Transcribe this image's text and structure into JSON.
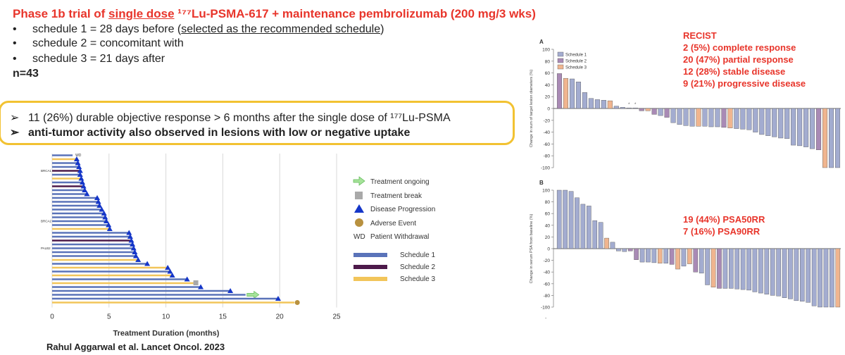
{
  "title": {
    "prefix": "Phase 1b trial of ",
    "underlined": "single dose",
    "suffix": " ¹⁷⁷Lu-PSMA-617 + maintenance pembrolizumab (200 mg/3 wks)"
  },
  "bullets": {
    "marker": "•",
    "items": [
      {
        "pre": "schedule 1 = 28 days before (",
        "underlined": "selected as the recommended schedule",
        "post": ")"
      },
      {
        "pre": "schedule 2 = concomitant with",
        "underlined": "",
        "post": ""
      },
      {
        "pre": "schedule 3 = 21 days after",
        "underlined": "",
        "post": ""
      }
    ],
    "n": "n=43"
  },
  "highlights": {
    "marker": "➢",
    "line1": "11 (26%) durable objective response > 6 months after the single dose of ¹⁷⁷Lu-PSMA",
    "line2": "anti-tumor activity also observed in lesions with low or negative uptake"
  },
  "citation": "Rahul Aggarwal et al. Lancet Oncol. 2023",
  "recist": {
    "heading": "RECIST",
    "lines": [
      "2 (5%) complete response",
      "20 (47%) partial response",
      "12 (28%) stable disease",
      "9 (21%) progressive disease"
    ]
  },
  "psa": {
    "lines": [
      "19 (44%) PSA50RR",
      "7 (16%) PSA90RR"
    ]
  },
  "colors": {
    "title_red": "#e8352b",
    "schedule1": "#5a73b9",
    "schedule2": "#4d1a4a",
    "schedule3": "#f2c55a",
    "highlight_border": "#f2c232",
    "wf_schedule1": "#a3acd0",
    "wf_schedule2": "#a98ab5",
    "wf_schedule3": "#f0b58f",
    "ongoing_arrow": "#a6e39a",
    "break_square": "#a9a9a9",
    "progression": "#1536c8",
    "adverse": "#b8913f"
  },
  "chart_data": [
    {
      "type": "swimmer",
      "xlabel": "Treatment Duration (months)",
      "xlim": [
        0,
        25
      ],
      "xticks": [
        "0",
        "5",
        "10",
        "15",
        "20",
        "25"
      ],
      "legend": {
        "ongoing": "Treatment ongoing",
        "break": "Treatment break",
        "progression": "Disease Progression",
        "adverse": "Adverse Event",
        "wd_abbr": "WD",
        "wd": "Patient Withdrawal",
        "s1": "Schedule 1",
        "s2": "Schedule 2",
        "s3": "Schedule 3"
      },
      "row_labels": {
        "0": "WD",
        "4": "BRCA1",
        "17": "BRCA2",
        "24": "PALB2"
      },
      "patients": [
        {
          "d": 1.8,
          "s": 1,
          "e": "none"
        },
        {
          "d": 2.1,
          "s": 3,
          "e": "prog"
        },
        {
          "d": 2.2,
          "s": 1,
          "e": "prog"
        },
        {
          "d": 2.3,
          "s": 1,
          "e": "prog"
        },
        {
          "d": 2.4,
          "s": 2,
          "e": "prog"
        },
        {
          "d": 2.4,
          "s": 1,
          "e": "prog"
        },
        {
          "d": 2.5,
          "s": 3,
          "e": "prog"
        },
        {
          "d": 2.6,
          "s": 1,
          "e": "prog"
        },
        {
          "d": 2.7,
          "s": 2,
          "e": "prog"
        },
        {
          "d": 2.8,
          "s": 1,
          "e": "prog"
        },
        {
          "d": 3.0,
          "s": 1,
          "e": "prog"
        },
        {
          "d": 3.9,
          "s": 1,
          "e": "prog"
        },
        {
          "d": 4.0,
          "s": 1,
          "e": "prog"
        },
        {
          "d": 4.1,
          "s": 1,
          "e": "prog"
        },
        {
          "d": 4.3,
          "s": 1,
          "e": "prog"
        },
        {
          "d": 4.5,
          "s": 1,
          "e": "prog"
        },
        {
          "d": 4.6,
          "s": 1,
          "e": "prog"
        },
        {
          "d": 4.7,
          "s": 1,
          "e": "prog"
        },
        {
          "d": 4.9,
          "s": 1,
          "e": "prog"
        },
        {
          "d": 5.0,
          "s": 3,
          "e": "prog"
        },
        {
          "d": 6.7,
          "s": 1,
          "e": "prog"
        },
        {
          "d": 6.8,
          "s": 1,
          "e": "prog"
        },
        {
          "d": 6.9,
          "s": 2,
          "e": "prog"
        },
        {
          "d": 7.0,
          "s": 1,
          "e": "prog"
        },
        {
          "d": 7.1,
          "s": 1,
          "e": "prog"
        },
        {
          "d": 7.2,
          "s": 1,
          "e": "prog"
        },
        {
          "d": 7.3,
          "s": 1,
          "e": "prog"
        },
        {
          "d": 7.5,
          "s": 3,
          "e": "prog"
        },
        {
          "d": 8.3,
          "s": 1,
          "e": "prog"
        },
        {
          "d": 10.1,
          "s": 3,
          "e": "prog"
        },
        {
          "d": 10.3,
          "s": 1,
          "e": "prog"
        },
        {
          "d": 10.5,
          "s": 3,
          "e": "prog"
        },
        {
          "d": 11.8,
          "s": 1,
          "e": "prog"
        },
        {
          "d": 12.6,
          "s": 3,
          "e": "break"
        },
        {
          "d": 13.0,
          "s": 1,
          "e": "prog"
        },
        {
          "d": 15.6,
          "s": 1,
          "e": "prog"
        },
        {
          "d": 17.0,
          "s": 1,
          "e": "ongoing"
        },
        {
          "d": 19.8,
          "s": 1,
          "e": "prog"
        },
        {
          "d": 21.3,
          "s": 3,
          "e": "adverse"
        }
      ]
    },
    {
      "type": "bar",
      "panel": "A",
      "ylabel": "Change in sum of target lesion diameters (%)",
      "ylim": [
        -100,
        100
      ],
      "yticks": [
        100,
        80,
        60,
        40,
        20,
        0,
        -20,
        -40,
        -60,
        -80,
        -100
      ],
      "legend": [
        "Schedule 1",
        "Schedule 2",
        "Schedule 3"
      ],
      "values": [
        59,
        51,
        50,
        45,
        27,
        17,
        15,
        14,
        13,
        4,
        2,
        1,
        1,
        -4,
        -4,
        -10,
        -12,
        -15,
        -24,
        -27,
        -29,
        -30,
        -30,
        -30,
        -31,
        -31,
        -32,
        -33,
        -34,
        -35,
        -36,
        -40,
        -44,
        -46,
        -48,
        -50,
        -51,
        -62,
        -63,
        -65,
        -68,
        -70,
        -100,
        -100,
        -100
      ],
      "schedules": [
        2,
        3,
        1,
        1,
        1,
        1,
        1,
        1,
        3,
        1,
        1,
        1,
        1,
        2,
        3,
        2,
        1,
        2,
        1,
        1,
        1,
        1,
        3,
        1,
        1,
        1,
        2,
        3,
        1,
        1,
        1,
        1,
        1,
        1,
        1,
        1,
        1,
        1,
        1,
        1,
        1,
        2,
        3,
        1,
        1
      ],
      "markers": [
        {
          "index": 11,
          "label": "*"
        },
        {
          "index": 12,
          "label": "*"
        }
      ]
    },
    {
      "type": "bar",
      "panel": "B",
      "ylabel": "Change in serum PSA from baseline (%)",
      "ylim": [
        -100,
        100
      ],
      "yticks": [
        100,
        80,
        60,
        40,
        20,
        0,
        -20,
        -40,
        -60,
        -80,
        -100
      ],
      "values": [
        100,
        100,
        98,
        87,
        76,
        73,
        48,
        45,
        18,
        11,
        -4,
        -5,
        -4,
        -19,
        -23,
        -23,
        -24,
        -25,
        -25,
        -27,
        -35,
        -30,
        -26,
        -40,
        -42,
        -62,
        -66,
        -68,
        -68,
        -68,
        -69,
        -70,
        -71,
        -74,
        -76,
        -78,
        -80,
        -81,
        -84,
        -86,
        -89,
        -90,
        -92,
        -98,
        -100,
        -100,
        -100,
        -100
      ],
      "schedules": [
        1,
        1,
        1,
        1,
        1,
        1,
        1,
        1,
        3,
        1,
        1,
        1,
        2,
        2,
        1,
        1,
        1,
        3,
        1,
        2,
        3,
        1,
        3,
        2,
        1,
        1,
        3,
        2,
        1,
        1,
        1,
        1,
        1,
        1,
        1,
        1,
        1,
        1,
        1,
        1,
        1,
        1,
        1,
        1,
        1,
        1,
        1,
        3
      ],
      "footer": "-"
    }
  ]
}
